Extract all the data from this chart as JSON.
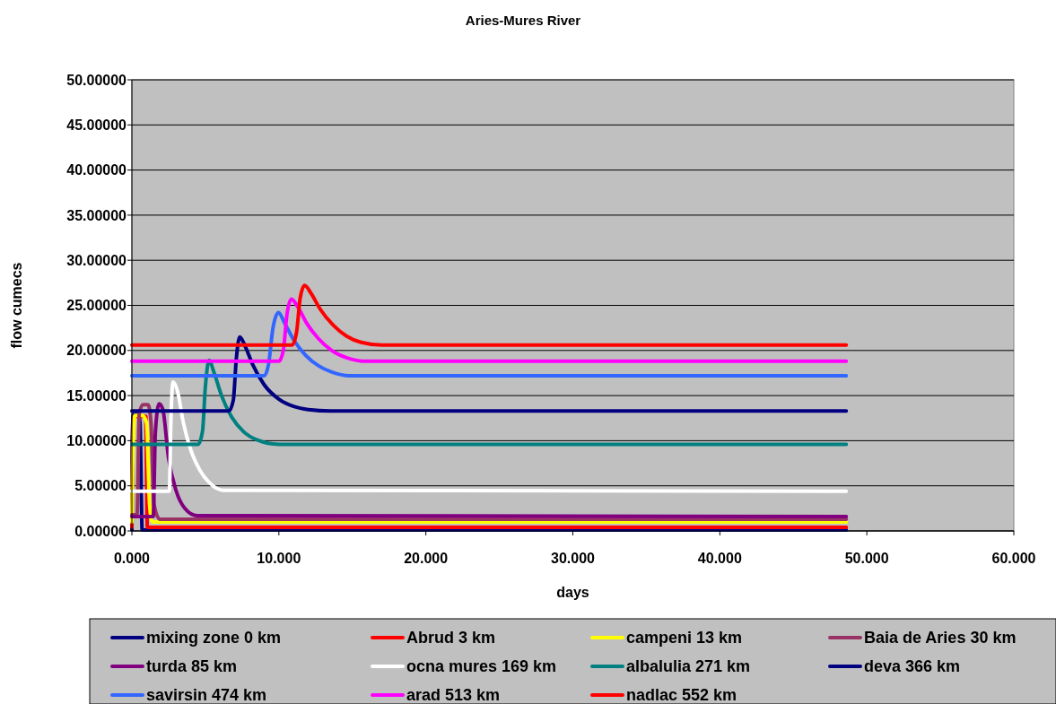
{
  "chart_data": {
    "type": "line",
    "title": "Aries-Mures River",
    "xlabel": "days",
    "ylabel": "flow cumecs",
    "xlim": [
      0,
      60
    ],
    "xticks": [
      {
        "value": 0,
        "label": "0.000"
      },
      {
        "value": 10,
        "label": "10.000"
      },
      {
        "value": 20,
        "label": "20.000"
      },
      {
        "value": 30,
        "label": "30.000"
      },
      {
        "value": 40,
        "label": "40.000"
      },
      {
        "value": 50,
        "label": "50.000"
      },
      {
        "value": 60,
        "label": "60.000"
      }
    ],
    "ylim": [
      0,
      50
    ],
    "yticks": [
      {
        "value": 0,
        "label": "0.00000"
      },
      {
        "value": 5,
        "label": "5.00000"
      },
      {
        "value": 10,
        "label": "10.00000"
      },
      {
        "value": 15,
        "label": "15.00000"
      },
      {
        "value": 20,
        "label": "20.00000"
      },
      {
        "value": 25,
        "label": "25.00000"
      },
      {
        "value": 30,
        "label": "30.00000"
      },
      {
        "value": 35,
        "label": "35.00000"
      },
      {
        "value": 40,
        "label": "40.00000"
      },
      {
        "value": 45,
        "label": "45.00000"
      },
      {
        "value": 50,
        "label": "50.00000"
      }
    ],
    "grid": "y",
    "legend": "bottom",
    "marker": "none",
    "line_style": "solid",
    "series": [
      {
        "name": "mixing zone 0 km",
        "color": "#000080",
        "x": [
          0,
          0.02,
          0.1,
          0.45,
          0.55,
          0.7,
          48.6
        ],
        "values": [
          0.1,
          10,
          12.9,
          12.9,
          12,
          0.1,
          0.1
        ]
      },
      {
        "name": "Abrud 3 km",
        "color": "#ff0000",
        "x": [
          0,
          0.05,
          0.15,
          0.8,
          0.95,
          1.05,
          48.6
        ],
        "values": [
          0.4,
          10,
          12.7,
          12.7,
          12.7,
          0.4,
          0.4
        ]
      },
      {
        "name": "campeni 13 km",
        "color": "#ffff00",
        "x": [
          0,
          0.05,
          0.2,
          0.7,
          1.0,
          1.2,
          1.4,
          48.6
        ],
        "values": [
          1.0,
          7,
          12.8,
          12.8,
          12,
          3,
          1.0,
          1.0
        ]
      },
      {
        "name": "Baia de Aries 30 km",
        "color": "#993366",
        "x": [
          0,
          0.35,
          0.5,
          0.75,
          1.1,
          1.3,
          1.5,
          1.9,
          48.6
        ],
        "values": [
          1.8,
          1.8,
          13,
          14,
          14,
          12,
          3,
          1.3,
          1.3
        ]
      },
      {
        "name": "turda 85 km",
        "color": "#800080",
        "x": [
          0,
          1.45,
          1.6,
          1.85,
          2.1,
          2.5,
          3,
          3.6,
          4.4,
          48.6
        ],
        "values": [
          1.6,
          1.6,
          11,
          14.1,
          13.5,
          8,
          4.5,
          2.5,
          1.7,
          1.6
        ]
      },
      {
        "name": "ocna mures 169 km",
        "color": "#ffffff",
        "x": [
          0,
          2.55,
          2.65,
          2.8,
          3.1,
          3.5,
          4.0,
          4.6,
          5.3,
          6.2,
          48.6
        ],
        "values": [
          4.4,
          4.4,
          12,
          16.5,
          15.5,
          12,
          9,
          6.8,
          5.3,
          4.5,
          4.4
        ]
      },
      {
        "name": "albalulia 271 km",
        "color": "#008080",
        "x": [
          0,
          4.5,
          4.8,
          5.0,
          5.25,
          5.6,
          6.1,
          6.8,
          7.6,
          8.5,
          10,
          48.6
        ],
        "values": [
          9.6,
          9.6,
          11,
          16,
          18.9,
          17.5,
          15,
          12.6,
          11,
          10.1,
          9.6,
          9.6
        ]
      },
      {
        "name": "deva 366 km",
        "color": "#000080",
        "x": [
          0,
          6.6,
          6.9,
          7.1,
          7.34,
          7.7,
          8.2,
          9,
          10,
          11,
          12,
          13.5,
          48.6
        ],
        "values": [
          13.3,
          13.3,
          14.5,
          19,
          21.5,
          20.5,
          18.5,
          16.2,
          14.6,
          13.8,
          13.45,
          13.3,
          13.3
        ]
      },
      {
        "name": "savirsin 474 km",
        "color": "#3366ff",
        "x": [
          0,
          9.0,
          9.3,
          9.6,
          9.97,
          10.4,
          11,
          11.8,
          12.7,
          13.6,
          14.8,
          48.6
        ],
        "values": [
          17.2,
          17.2,
          18.5,
          22.5,
          24.2,
          23,
          21.2,
          19.5,
          18.3,
          17.6,
          17.2,
          17.2
        ]
      },
      {
        "name": "arad 513 km",
        "color": "#ff00ff",
        "x": [
          0,
          10.0,
          10.3,
          10.55,
          10.85,
          11.3,
          11.9,
          12.7,
          13.6,
          14.6,
          16,
          48.6
        ],
        "values": [
          18.8,
          18.8,
          20,
          24,
          25.7,
          24.8,
          23,
          21.3,
          20,
          19.2,
          18.8,
          18.8
        ]
      },
      {
        "name": "nadlac 552 km",
        "color": "#ff0000",
        "x": [
          0,
          10.9,
          11.2,
          11.45,
          11.75,
          12.2,
          12.8,
          13.7,
          14.6,
          15.6,
          17,
          48.6
        ],
        "values": [
          20.6,
          20.6,
          22,
          25.8,
          27.2,
          26.3,
          24.6,
          22.8,
          21.6,
          20.9,
          20.6,
          20.6
        ]
      }
    ]
  }
}
